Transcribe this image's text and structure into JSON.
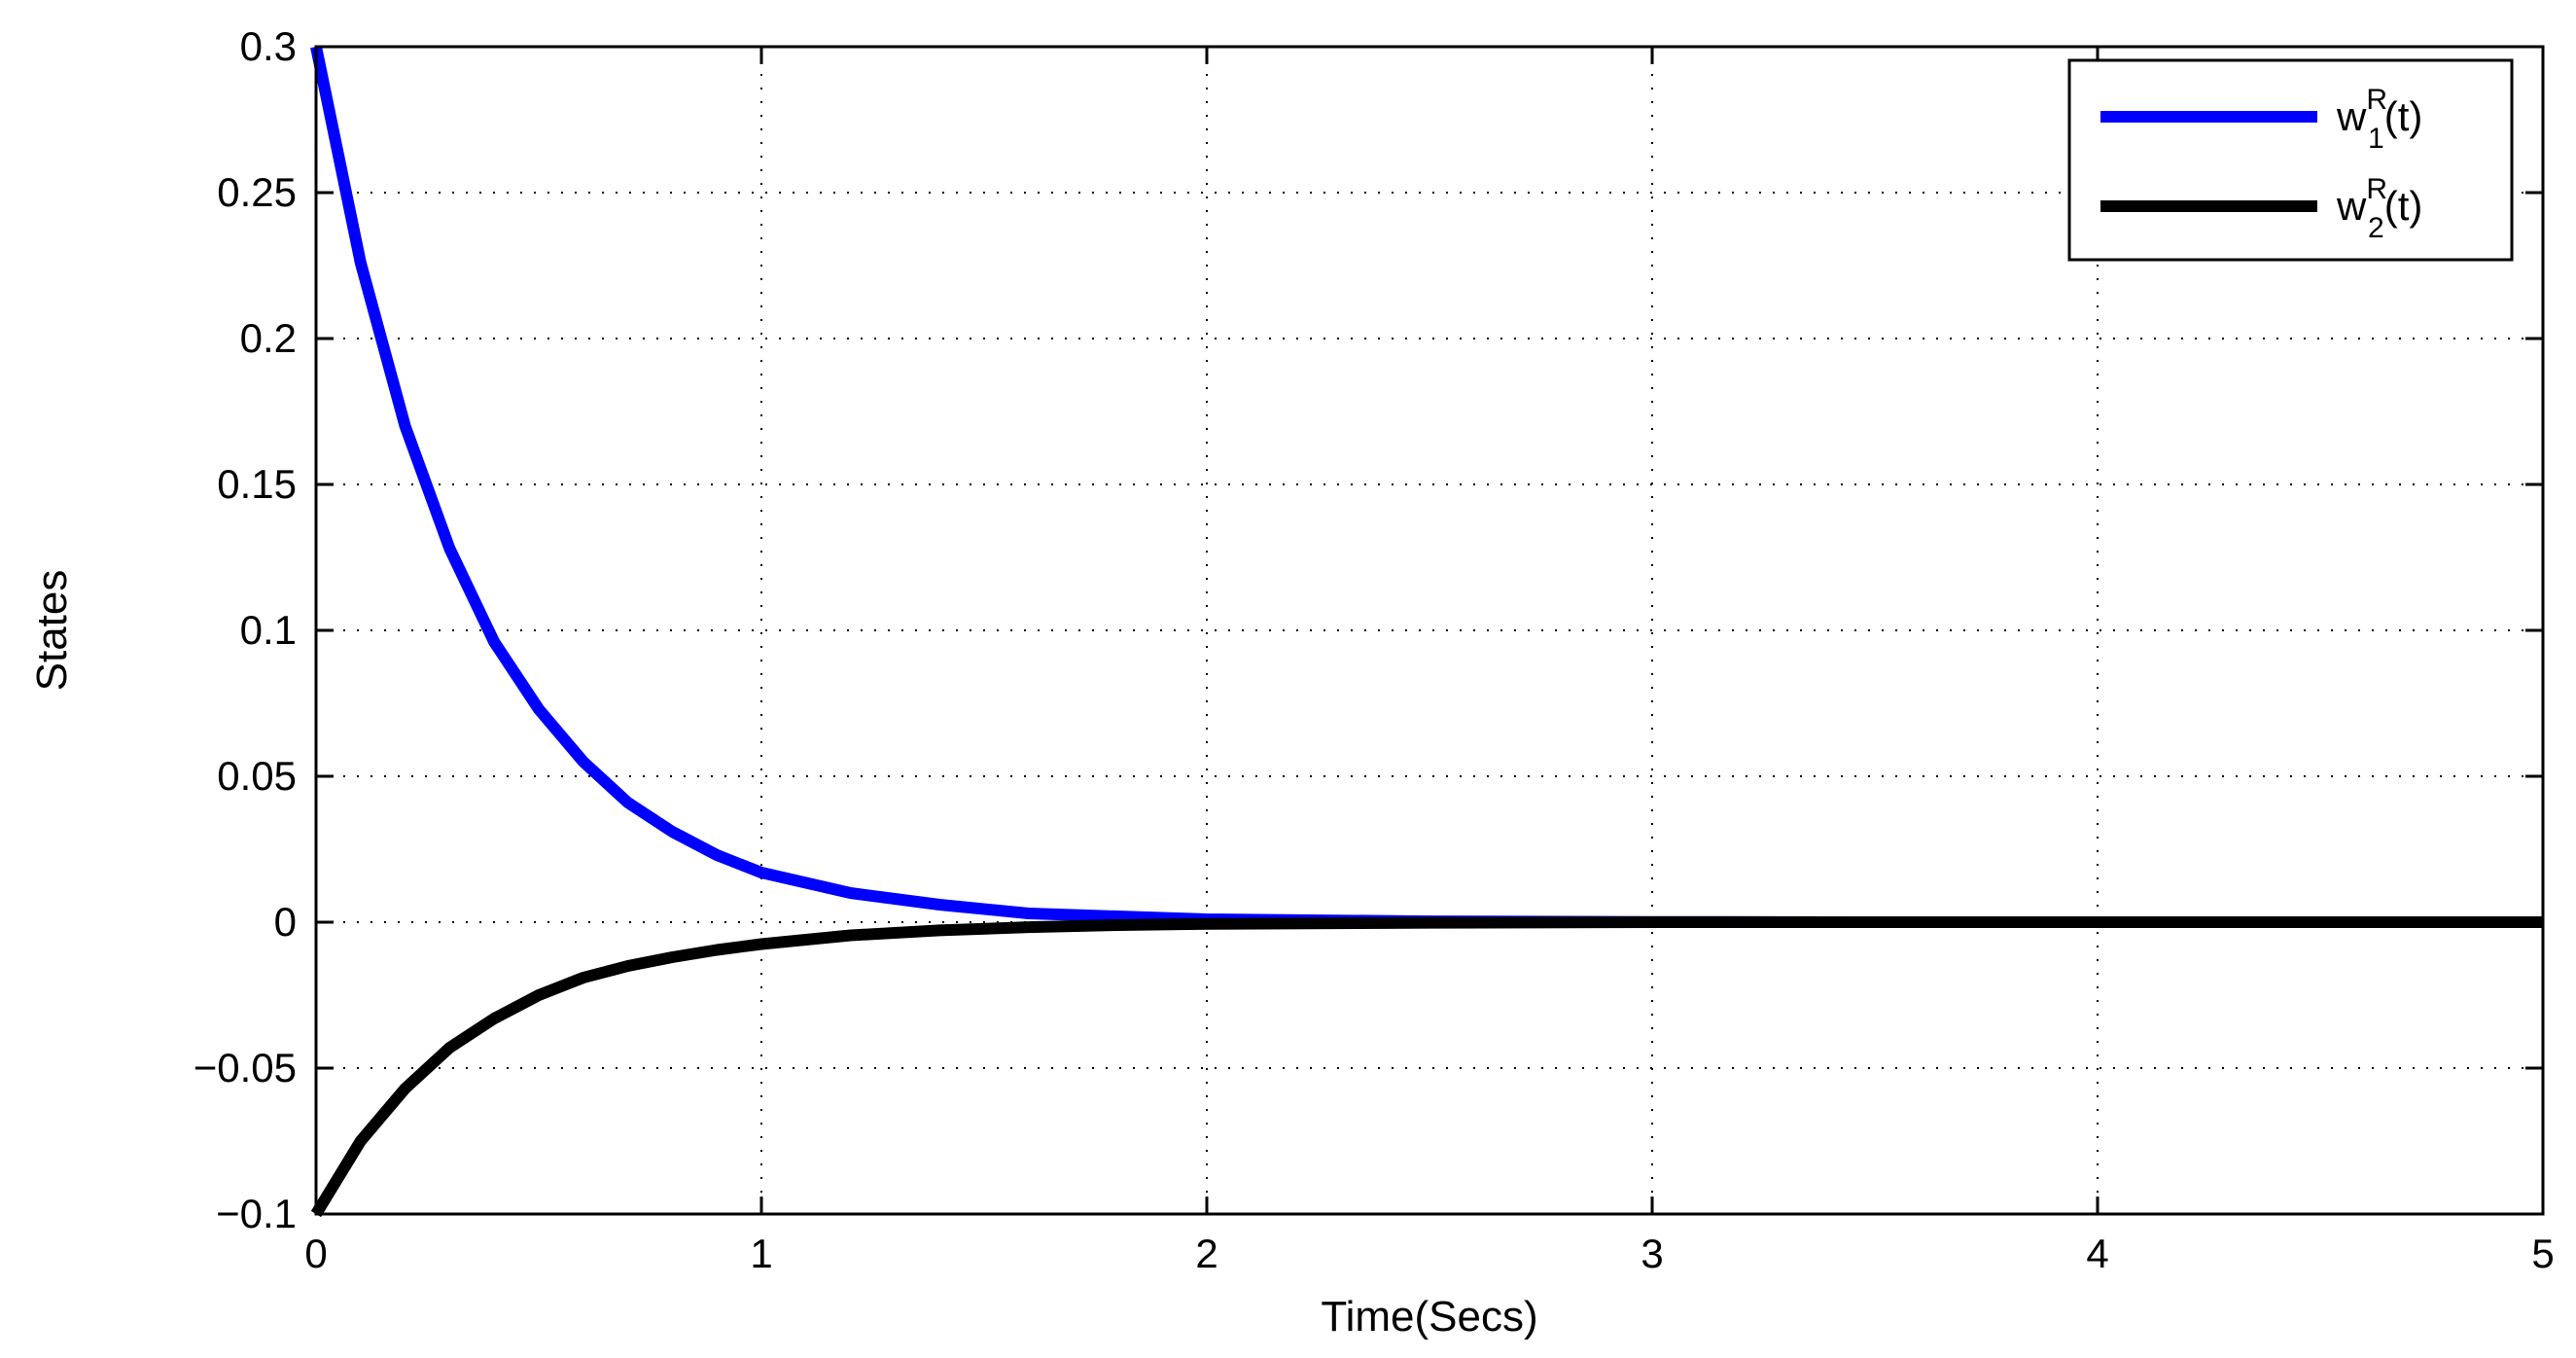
{
  "chart_data": {
    "type": "line",
    "title": "",
    "xlabel": "Time(Secs)",
    "ylabel": "States",
    "xlim": [
      0,
      5
    ],
    "ylim": [
      -0.1,
      0.3
    ],
    "xticks": [
      0,
      1,
      2,
      3,
      4,
      5
    ],
    "xtick_labels": [
      "0",
      "1",
      "2",
      "3",
      "4",
      "5"
    ],
    "yticks": [
      -0.1,
      -0.05,
      0,
      0.05,
      0.1,
      0.15,
      0.2,
      0.25,
      0.3
    ],
    "ytick_labels": [
      "−0.1",
      "−0.05",
      "0",
      "0.05",
      "0.1",
      "0.15",
      "0.2",
      "0.25",
      "0.3"
    ],
    "grid": true,
    "grid_style": "dotted",
    "legend_position": "top-right",
    "series": [
      {
        "name": "w1R(t)",
        "legend_base": "w",
        "legend_sub": "1",
        "legend_sup": "R",
        "legend_tail": "(t)",
        "color": "#0000ff",
        "x": [
          0,
          0.1,
          0.2,
          0.3,
          0.4,
          0.5,
          0.6,
          0.7,
          0.8,
          0.9,
          1.0,
          1.2,
          1.4,
          1.6,
          1.8,
          2.0,
          2.5,
          3.0,
          3.5,
          4.0,
          4.5,
          5.0
        ],
        "y": [
          0.3,
          0.226,
          0.17,
          0.128,
          0.096,
          0.073,
          0.055,
          0.041,
          0.031,
          0.023,
          0.017,
          0.01,
          0.006,
          0.003,
          0.002,
          0.001,
          0.0003,
          0.0001,
          0,
          0,
          0,
          0
        ]
      },
      {
        "name": "w2R(t)",
        "legend_base": "w",
        "legend_sub": "2",
        "legend_sup": "R",
        "legend_tail": "(t)",
        "color": "#000000",
        "x": [
          0,
          0.1,
          0.2,
          0.3,
          0.4,
          0.5,
          0.6,
          0.7,
          0.8,
          0.9,
          1.0,
          1.2,
          1.4,
          1.6,
          1.8,
          2.0,
          2.5,
          3.0,
          3.5,
          4.0,
          4.5,
          5.0
        ],
        "y": [
          -0.1,
          -0.075,
          -0.057,
          -0.043,
          -0.033,
          -0.025,
          -0.019,
          -0.015,
          -0.012,
          -0.0095,
          -0.0075,
          -0.0045,
          -0.0028,
          -0.0017,
          -0.001,
          -0.0006,
          -0.0002,
          0,
          0,
          0,
          0,
          0
        ]
      }
    ]
  }
}
